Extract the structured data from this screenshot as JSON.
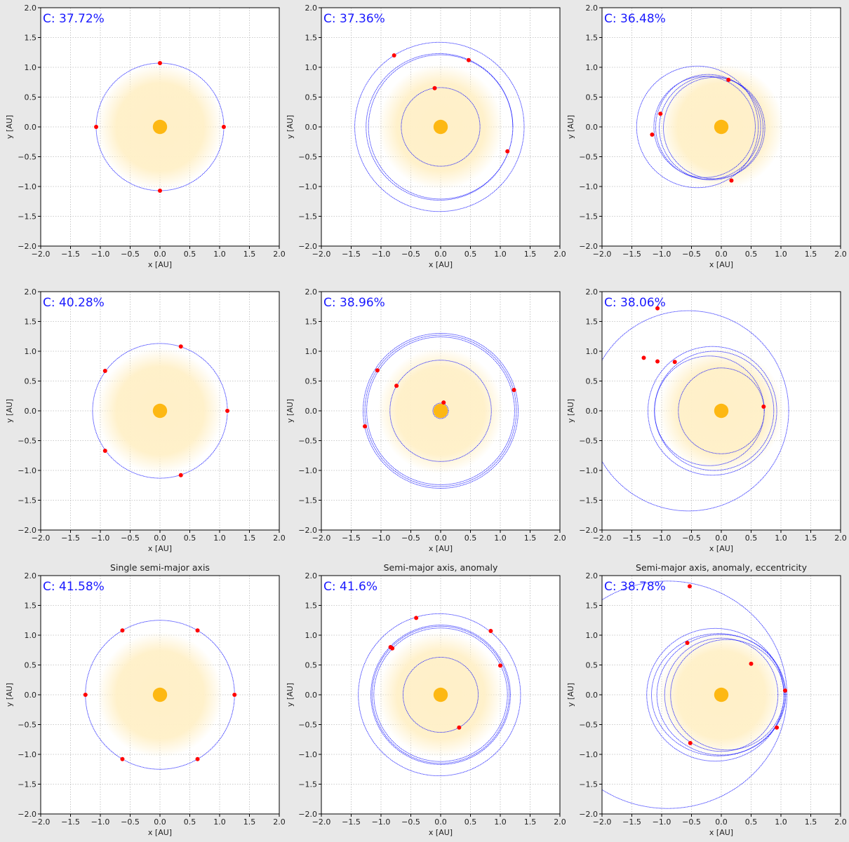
{
  "colors": {
    "background": "#e8e8e8",
    "axes_face": "#ffffff",
    "orbit": "#1a1aff",
    "planet": "#ff0000",
    "star": "#fdb813",
    "habitable_zone": "#fff0c8",
    "grid": "#bbbbbb",
    "c_label": "#1a1aff"
  },
  "shared": {
    "xlabel": "x [AU]",
    "ylabel": "y [AU]",
    "xlim": [
      -2.0,
      2.0
    ],
    "ylim": [
      -2.0,
      2.0
    ],
    "ticks": [
      -2.0,
      -1.5,
      -1.0,
      -0.5,
      0.0,
      0.5,
      1.0,
      1.5,
      2.0
    ],
    "tick_labels": [
      "−2.0",
      "−1.5",
      "−1.0",
      "−0.5",
      "0.0",
      "0.5",
      "1.0",
      "1.5",
      "2.0"
    ],
    "grid": true,
    "grid_style": "dotted",
    "star_radius": 0.12,
    "habitable_zone_radius": 1.05
  },
  "chart_data": [
    {
      "type": "scatter",
      "title": "",
      "c_label": "C: 37.72%",
      "orbits": [
        {
          "a": 1.07,
          "e": 0.0,
          "cx": 0.0,
          "cy": 0.0
        }
      ],
      "planets": [
        {
          "x": 0.0,
          "y": 1.07
        },
        {
          "x": 1.07,
          "y": 0.0
        },
        {
          "x": 0.0,
          "y": -1.07
        },
        {
          "x": -1.07,
          "y": 0.0
        }
      ]
    },
    {
      "type": "scatter",
      "title": "",
      "c_label": "C: 37.36%",
      "orbits": [
        {
          "a": 0.66,
          "e": 0.0,
          "cx": 0.0,
          "cy": 0.0
        },
        {
          "a": 1.21,
          "e": 0.0,
          "cx": 0.0,
          "cy": 0.0
        },
        {
          "a": 1.23,
          "e": 0.0,
          "cx": -0.02,
          "cy": 0.0
        },
        {
          "a": 1.42,
          "e": 0.0,
          "cx": -0.02,
          "cy": 0.0
        }
      ],
      "planets": [
        {
          "x": -0.1,
          "y": 0.65
        },
        {
          "x": 0.47,
          "y": 1.12
        },
        {
          "x": -0.78,
          "y": 1.2
        },
        {
          "x": 1.12,
          "y": -0.41
        }
      ]
    },
    {
      "type": "scatter",
      "title": "",
      "c_label": "C: 36.48%",
      "orbits": [
        {
          "a": 0.87,
          "e": 0.0,
          "cx": -0.17,
          "cy": -0.02
        },
        {
          "a": 0.85,
          "e": 0.0,
          "cx": -0.12,
          "cy": -0.02
        },
        {
          "a": 0.88,
          "e": 0.0,
          "cx": -0.22,
          "cy": 0.0
        },
        {
          "a": 0.85,
          "e": 0.0,
          "cx": -0.28,
          "cy": 0.0
        },
        {
          "a": 1.02,
          "e": 0.0,
          "cx": -0.4,
          "cy": 0.0
        }
      ],
      "planets": [
        {
          "x": 0.12,
          "y": 0.79
        },
        {
          "x": -1.02,
          "y": 0.22
        },
        {
          "x": -1.16,
          "y": -0.13
        },
        {
          "x": 0.17,
          "y": -0.9
        }
      ]
    },
    {
      "type": "scatter",
      "title": "",
      "c_label": "C: 40.28%",
      "orbits": [
        {
          "a": 1.13,
          "e": 0.0,
          "cx": 0.0,
          "cy": 0.0
        }
      ],
      "planets": [
        {
          "x": 0.35,
          "y": 1.08
        },
        {
          "x": -0.92,
          "y": 0.67
        },
        {
          "x": 1.13,
          "y": 0.0
        },
        {
          "x": -0.92,
          "y": -0.67
        },
        {
          "x": 0.35,
          "y": -1.08
        }
      ]
    },
    {
      "type": "scatter",
      "title": "",
      "c_label": "C: 38.96%",
      "orbits": [
        {
          "a": 0.13,
          "e": 0.0,
          "cx": 0.0,
          "cy": 0.0
        },
        {
          "a": 0.85,
          "e": 0.0,
          "cx": 0.0,
          "cy": 0.0
        },
        {
          "a": 1.24,
          "e": 0.0,
          "cx": 0.0,
          "cy": 0.0
        },
        {
          "a": 1.27,
          "e": 0.0,
          "cx": 0.0,
          "cy": 0.0
        },
        {
          "a": 1.3,
          "e": 0.0,
          "cx": 0.0,
          "cy": 0.0
        }
      ],
      "planets": [
        {
          "x": 0.05,
          "y": 0.14
        },
        {
          "x": -0.74,
          "y": 0.42
        },
        {
          "x": -1.06,
          "y": 0.68
        },
        {
          "x": 1.23,
          "y": 0.35
        },
        {
          "x": -1.27,
          "y": -0.26
        }
      ]
    },
    {
      "type": "scatter",
      "title": "",
      "c_label": "C: 38.06%",
      "orbits": [
        {
          "a": 0.72,
          "e": 0.0,
          "cx": 0.0,
          "cy": 0.0
        },
        {
          "a": 0.92,
          "e": 0.0,
          "cx": -0.2,
          "cy": 0.0
        },
        {
          "a": 1.0,
          "e": 0.0,
          "cx": -0.12,
          "cy": 0.0
        },
        {
          "a": 1.08,
          "e": 0.0,
          "cx": -0.15,
          "cy": 0.0
        },
        {
          "a": 1.68,
          "e": 0.0,
          "cx": -0.55,
          "cy": 0.0
        }
      ],
      "planets": [
        {
          "x": 0.71,
          "y": 0.07
        },
        {
          "x": -1.07,
          "y": 1.72
        },
        {
          "x": -1.3,
          "y": 0.89
        },
        {
          "x": -1.07,
          "y": 0.83
        },
        {
          "x": -0.78,
          "y": 0.82
        }
      ]
    },
    {
      "type": "scatter",
      "title": "Single semi-major axis",
      "c_label": "C: 41.58%",
      "orbits": [
        {
          "a": 1.25,
          "e": 0.0,
          "cx": 0.0,
          "cy": 0.0
        }
      ],
      "planets": [
        {
          "x": 0.63,
          "y": 1.08
        },
        {
          "x": -0.63,
          "y": 1.08
        },
        {
          "x": 1.25,
          "y": 0.0
        },
        {
          "x": -1.25,
          "y": 0.0
        },
        {
          "x": 0.63,
          "y": -1.08
        },
        {
          "x": -0.63,
          "y": -1.08
        }
      ]
    },
    {
      "type": "scatter",
      "title": "Semi-major axis, anomaly",
      "c_label": "C: 41.6%",
      "orbits": [
        {
          "a": 0.63,
          "e": 0.0,
          "cx": 0.0,
          "cy": 0.0
        },
        {
          "a": 1.12,
          "e": 0.0,
          "cx": 0.0,
          "cy": 0.0
        },
        {
          "a": 1.15,
          "e": 0.0,
          "cx": 0.0,
          "cy": 0.0
        },
        {
          "a": 1.17,
          "e": 0.0,
          "cx": 0.0,
          "cy": 0.0
        },
        {
          "a": 1.36,
          "e": 0.0,
          "cx": -0.02,
          "cy": 0.0
        }
      ],
      "planets": [
        {
          "x": -0.41,
          "y": 1.29
        },
        {
          "x": 0.84,
          "y": 1.07
        },
        {
          "x": -0.84,
          "y": 0.8
        },
        {
          "x": -0.81,
          "y": 0.78
        },
        {
          "x": 1.0,
          "y": 0.49
        },
        {
          "x": 0.31,
          "y": -0.55
        }
      ]
    },
    {
      "type": "scatter",
      "title": "Semi-major axis, anomaly, eccentricity",
      "c_label": "C: 38.78%",
      "orbits": [
        {
          "a": 0.95,
          "e": 0.0,
          "cx": 0.0,
          "cy": 0.0
        },
        {
          "a": 0.95,
          "e": 0.22,
          "cx": 0.1,
          "cy": 0.0
        },
        {
          "a": 1.08,
          "e": 0.35,
          "cx": 0.0,
          "cy": 0.0
        },
        {
          "a": 1.15,
          "e": 0.25,
          "cx": -0.1,
          "cy": 0.0
        },
        {
          "a": 1.12,
          "e": 0.4,
          "cx": -0.05,
          "cy": 0.0
        },
        {
          "a": 2.0,
          "e": 0.3,
          "cx": -0.9,
          "cy": 0.0
        }
      ],
      "planets": [
        {
          "x": -0.53,
          "y": 1.82
        },
        {
          "x": -0.57,
          "y": 0.87
        },
        {
          "x": 0.5,
          "y": 0.52
        },
        {
          "x": 1.07,
          "y": 0.07
        },
        {
          "x": 0.93,
          "y": -0.55
        },
        {
          "x": -0.52,
          "y": -0.81
        }
      ]
    }
  ]
}
